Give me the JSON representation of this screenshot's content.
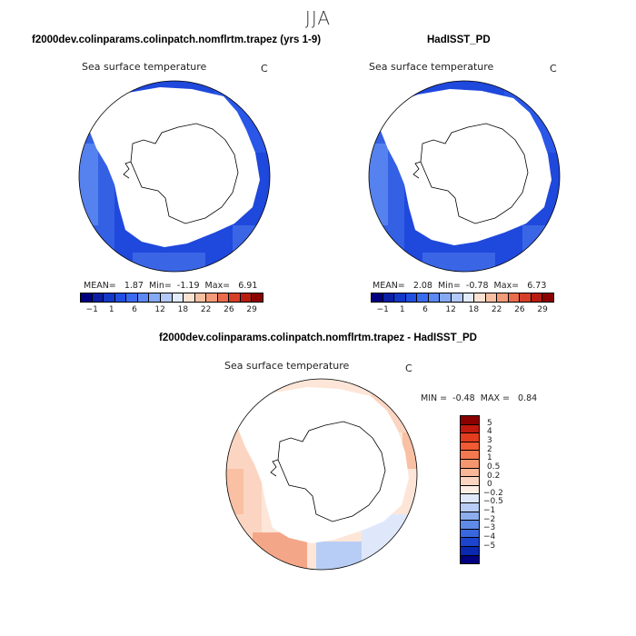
{
  "season": "JJA",
  "colors": {
    "land": "#ffffff",
    "coast": "#000000",
    "sst_deep": "#1a3fd6",
    "sst_mid": "#2a57e8",
    "sst_light": "#5a86ef",
    "diff_pos": "#f4a688",
    "diff_pos_light": "#fbd5c1",
    "diff_neg": "#b7cdf5",
    "diff_neutral": "#fde6d8"
  },
  "panels": [
    {
      "title": "f2000dev.colinparams.colinpatch.nomflrtm.trapez (yrs 1-9)",
      "variable": "Sea surface temperature",
      "units": "C",
      "stats": {
        "mean_label": "MEAN=",
        "mean": "1.87",
        "min_label": "Min=",
        "min": "-1.19",
        "max_label": "Max=",
        "max": "6.91"
      }
    },
    {
      "title": "HadISST_PD",
      "variable": "Sea surface temperature",
      "units": "C",
      "stats": {
        "mean_label": "MEAN=",
        "mean": "2.08",
        "min_label": "Min=",
        "min": "-0.78",
        "max_label": "Max=",
        "max": "6.73"
      }
    }
  ],
  "abs_colorbar": {
    "colors": [
      "#00007f",
      "#0a1fa6",
      "#1238c8",
      "#2050e2",
      "#3a6af0",
      "#5b88f3",
      "#86a9f5",
      "#b3c9f7",
      "#e2ecfb",
      "#fbe2d2",
      "#f8c0a3",
      "#f39a78",
      "#ea6c4c",
      "#d63f27",
      "#b81c10",
      "#8a0000"
    ],
    "tick_labels": [
      "-1",
      "1",
      "6",
      "12",
      "18",
      "22",
      "26",
      "29"
    ]
  },
  "diff": {
    "title": "f2000dev.colinparams.colinpatch.nomflrtm.trapez - HadISST_PD",
    "variable": "Sea surface temperature",
    "units": "C",
    "min_label": "MIN =",
    "min": "-0.48",
    "max_label": "MAX =",
    "max": "0.84",
    "colorbar": {
      "colors": [
        "#8a0000",
        "#c01a0e",
        "#e23d1e",
        "#f25a33",
        "#f47850",
        "#f6966f",
        "#f9b797",
        "#fbd5c1",
        "#fdeee6",
        "#dfe8fb",
        "#b7cdf5",
        "#8caeef",
        "#5f8ae8",
        "#3a66de",
        "#1c44cc",
        "#0a28b0",
        "#000080"
      ],
      "labels": [
        "5",
        "4",
        "3",
        "2",
        "1",
        "0.5",
        "0.2",
        "0",
        "-0.2",
        "-0.5",
        "-1",
        "-2",
        "-3",
        "-4",
        "-5"
      ]
    }
  }
}
